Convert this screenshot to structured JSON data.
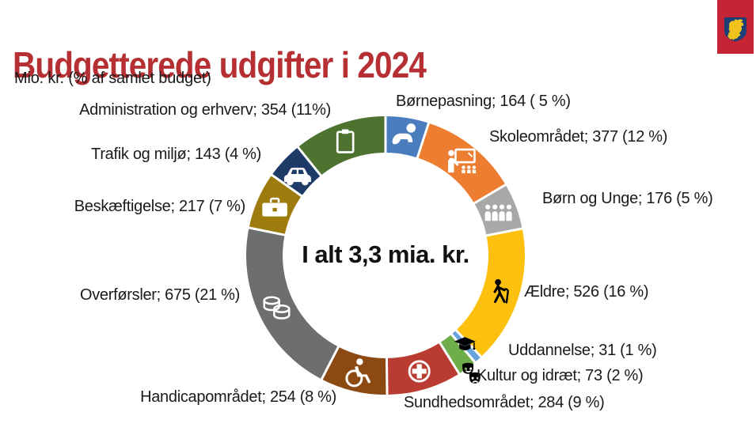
{
  "page": {
    "title": "Budgetterede udgifter i 2024",
    "subtitle": "Mio. kr. (% af samlet budget)",
    "title_color": "#b52f33",
    "background": "#ffffff"
  },
  "logo": {
    "name": "municipal-coat-of-arms-griffin",
    "banner_color": "#c42433",
    "shield_color": "#1d3f78",
    "griffin_color": "#efc31b"
  },
  "chart_data": {
    "type": "pie",
    "subtype": "donut",
    "title": "Budgetterede udgifter i 2024",
    "units": "Mio. kr. (% af samlet budget)",
    "center_label": "I alt 3,3 mia. kr.",
    "total_mio_kr": 3274,
    "start_angle_deg": 0,
    "direction": "clockwise",
    "legend_position": "around-slices",
    "segments": [
      {
        "name": "Børnepasning",
        "value": 164,
        "pct": 5,
        "label": "Børnepasning; 164 ( 5 %)",
        "color": "#4a7dbd",
        "icon": "baby-icon",
        "icon_color": "#ffffff"
      },
      {
        "name": "Skoleområdet",
        "value": 377,
        "pct": 12,
        "label": "Skoleområdet; 377 (12 %)",
        "color": "#ed7d31",
        "icon": "teacher-icon",
        "icon_color": "#ffffff"
      },
      {
        "name": "Børn og Unge",
        "value": 176,
        "pct": 5,
        "label": "Børn og Unge; 176 (5 %)",
        "color": "#a8a8a8",
        "icon": "people-group-icon",
        "icon_color": "#ffffff"
      },
      {
        "name": "Ældre",
        "value": 526,
        "pct": 16,
        "label": "Ældre; 526 (16 %)",
        "color": "#fdc00e",
        "icon": "elderly-cane-icon",
        "icon_color": "#000000"
      },
      {
        "name": "Uddannelse",
        "value": 31,
        "pct": 1,
        "label": "Uddannelse; 31 (1 %)",
        "color": "#68a4dc",
        "icon": "graduation-cap-icon",
        "icon_color": "#000000"
      },
      {
        "name": "Kultur og idræt",
        "value": 73,
        "pct": 2,
        "label": "Kultur og idræt; 73 (2 %)",
        "color": "#6fad4b",
        "icon": "theater-masks-icon",
        "icon_color": "#000000"
      },
      {
        "name": "Sundhedsområdet",
        "value": 284,
        "pct": 9,
        "label": "Sundhedsområdet; 284 (9 %)",
        "color": "#b93b31",
        "icon": "medical-cross-icon",
        "icon_color": "#ffffff"
      },
      {
        "name": "Handicapområdet",
        "value": 254,
        "pct": 8,
        "label": "Handicapområdet; 254 (8 %)",
        "color": "#8c4a12",
        "icon": "wheelchair-icon",
        "icon_color": "#ffffff"
      },
      {
        "name": "Overførsler",
        "value": 675,
        "pct": 21,
        "label": "Overførsler; 675 (21 %)",
        "color": "#6e6e6e",
        "icon": "coins-icon",
        "icon_color": "#ffffff"
      },
      {
        "name": "Beskæftigelse",
        "value": 217,
        "pct": 7,
        "label": "Beskæftigelse; 217 (7 %)",
        "color": "#9d7c0d",
        "icon": "briefcase-icon",
        "icon_color": "#ffffff"
      },
      {
        "name": "Trafik og miljø",
        "value": 143,
        "pct": 4,
        "label": "Trafik og miljø; 143 (4 %)",
        "color": "#1e3a66",
        "icon": "car-icon",
        "icon_color": "#ffffff"
      },
      {
        "name": "Administration og erhverv",
        "value": 354,
        "pct": 11,
        "label": "Administration og erhverv; 354 (11%)",
        "color": "#4e7230",
        "icon": "clipboard-icon",
        "icon_color": "#ffffff"
      }
    ]
  }
}
